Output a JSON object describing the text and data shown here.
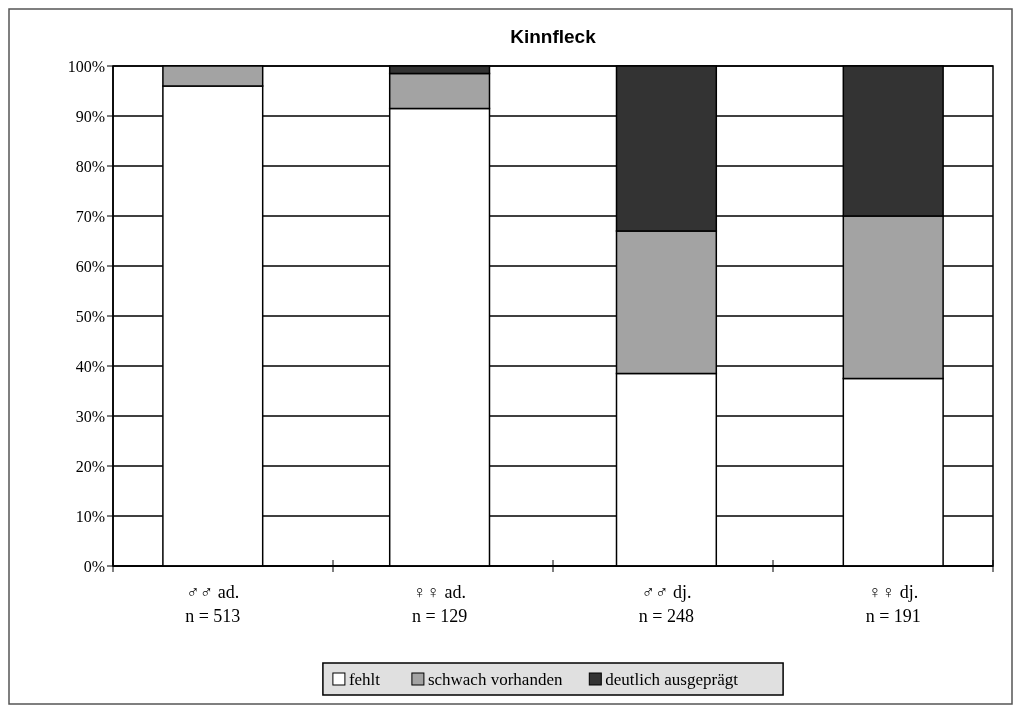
{
  "chart_data": {
    "type": "bar",
    "title": "Kinnfleck",
    "stacked": true,
    "categories": [
      "♂♂ ad.\nn = 513",
      "♀♀ ad.\nn = 129",
      "♂♂ dj.\nn = 248",
      "♀♀ dj.\nn = 191"
    ],
    "series": [
      {
        "name": "fehlt",
        "color": "#ffffff",
        "values": [
          96,
          91.5,
          38.5,
          37.5
        ]
      },
      {
        "name": "schwach vorhanden",
        "color": "#a3a3a3",
        "values": [
          4,
          7,
          28.5,
          32.5
        ]
      },
      {
        "name": "deutlich ausgeprägt",
        "color": "#333333",
        "values": [
          0,
          1.5,
          33,
          30
        ]
      }
    ],
    "ylim": [
      0,
      100
    ],
    "yticks": [
      {
        "value": 0,
        "label": "0%"
      },
      {
        "value": 10,
        "label": "10%"
      },
      {
        "value": 20,
        "label": "20%"
      },
      {
        "value": 30,
        "label": "30%"
      },
      {
        "value": 40,
        "label": "40%"
      },
      {
        "value": 50,
        "label": "50%"
      },
      {
        "value": 60,
        "label": "60%"
      },
      {
        "value": 70,
        "label": "70%"
      },
      {
        "value": 80,
        "label": "80%"
      },
      {
        "value": 90,
        "label": "90%"
      },
      {
        "value": 100,
        "label": "100%"
      }
    ],
    "grid": "y",
    "legend": "bottom"
  }
}
